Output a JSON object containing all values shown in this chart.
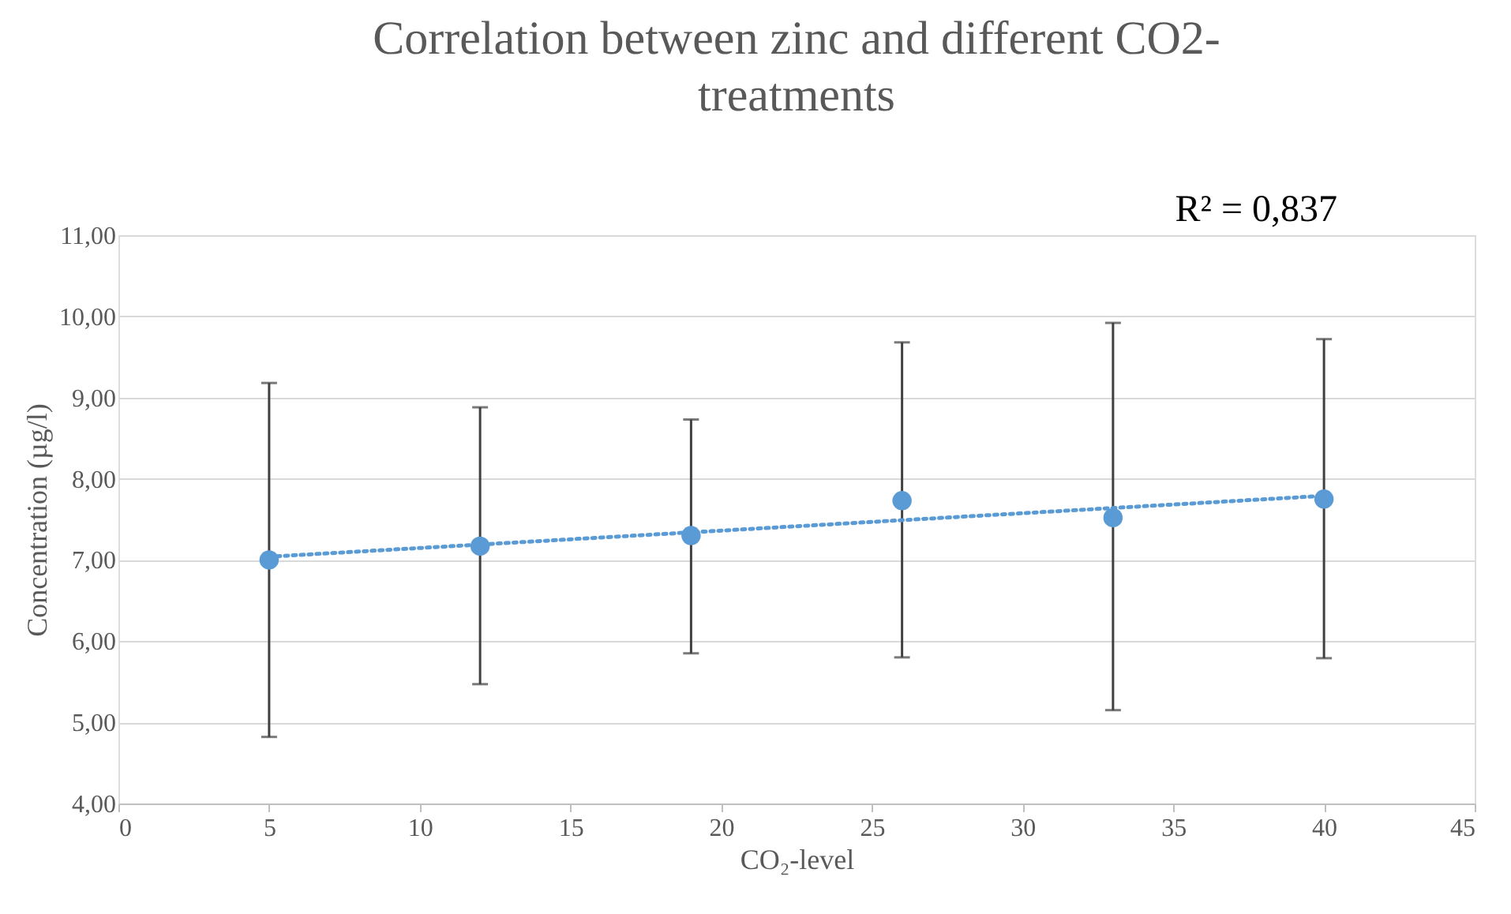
{
  "chart_data": {
    "type": "scatter",
    "title": "Correlation between zinc and different CO2-treatments",
    "xlabel": "CO₂-level",
    "ylabel": "Concentration (µg/l)",
    "annotations": [
      "R² = 0,837"
    ],
    "xlim": [
      0,
      45
    ],
    "xticks": [
      0,
      5,
      10,
      15,
      20,
      25,
      30,
      35,
      40,
      45
    ],
    "ylim": [
      4,
      11
    ],
    "yticks": [
      {
        "value": 4,
        "label": "4,00"
      },
      {
        "value": 5,
        "label": "5,00"
      },
      {
        "value": 6,
        "label": "6,00"
      },
      {
        "value": 7,
        "label": "7,00"
      },
      {
        "value": 8,
        "label": "8,00"
      },
      {
        "value": 9,
        "label": "9,00"
      },
      {
        "value": 10,
        "label": "10,00"
      },
      {
        "value": 11,
        "label": "11,00"
      }
    ],
    "grid": "y",
    "legend": false,
    "series": [
      {
        "color": "#5b9bd5",
        "marker": "circle",
        "x": [
          5,
          12,
          19,
          26,
          33,
          40
        ],
        "values": [
          7.0,
          7.17,
          7.3,
          7.73,
          7.52,
          7.75
        ],
        "errors": [
          [
            4.82,
            9.18
          ],
          [
            5.47,
            8.88
          ],
          [
            5.85,
            8.73
          ],
          [
            5.8,
            9.68
          ],
          [
            5.15,
            9.92
          ],
          [
            5.79,
            9.72
          ]
        ]
      },
      {
        "type": "line",
        "color": "#5b9bd5",
        "line_style": "dotted",
        "marker": "none",
        "x": [
          5,
          40
        ],
        "values": [
          7.04,
          7.79
        ]
      }
    ]
  }
}
